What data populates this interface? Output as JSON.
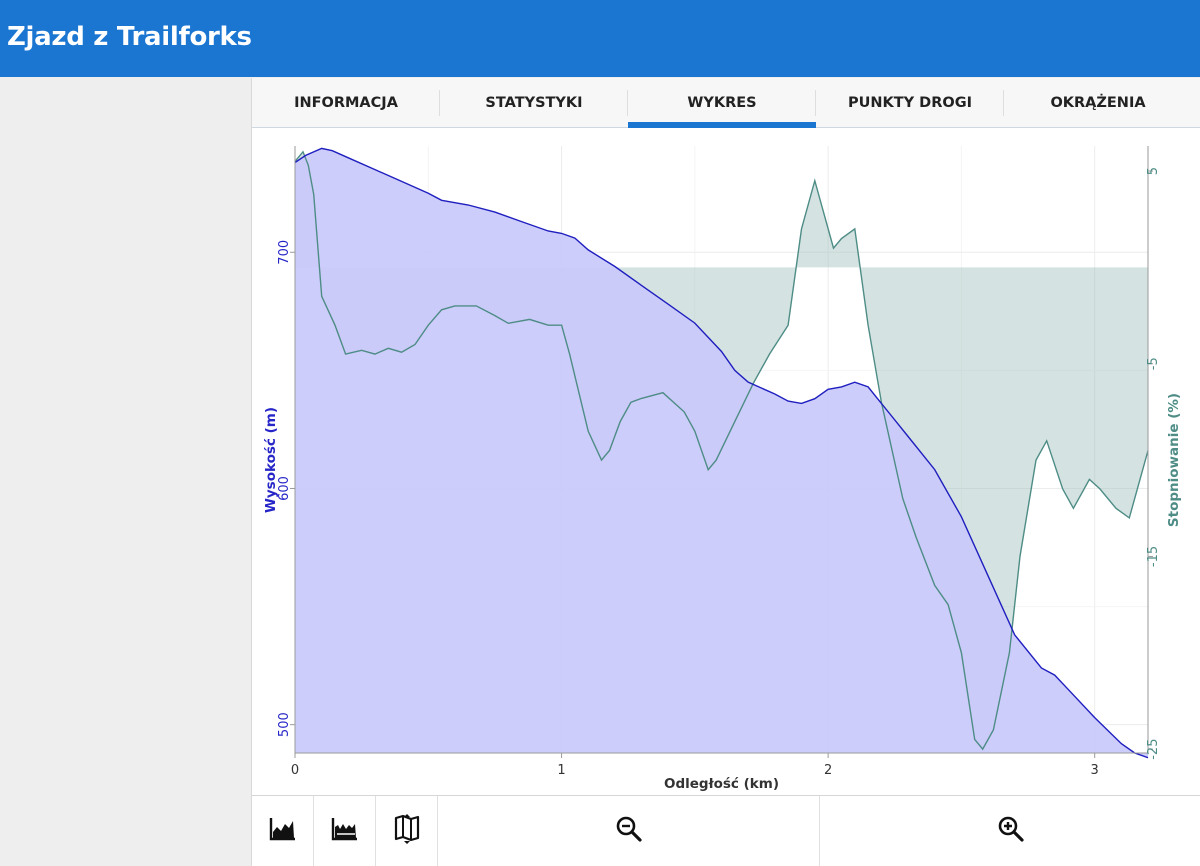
{
  "app": {
    "title": "Zjazd z Trailforks"
  },
  "tabs": [
    {
      "label": "INFORMACJA",
      "active": false
    },
    {
      "label": "STATYSTYKI",
      "active": false
    },
    {
      "label": "WYKRES",
      "active": true
    },
    {
      "label": "PUNKTY DROGI",
      "active": false
    },
    {
      "label": "OKRĄŻENIA",
      "active": false
    }
  ],
  "colors": {
    "appbar": "#1b76d2",
    "elevation_line": "#1f1fbf",
    "elevation_fill": "#c9c9fb",
    "grade_line": "#4e8c86",
    "grade_fill": "#9fc2bd",
    "left_axis_text": "#2626c8",
    "right_axis_text": "#4e8c86"
  },
  "toolbar": {
    "buttons": [
      {
        "icon": "elevation-chart-icon"
      },
      {
        "icon": "speed-chart-icon"
      },
      {
        "icon": "map-toggle-icon"
      },
      {
        "icon": "zoom-out-icon"
      },
      {
        "icon": "zoom-in-icon"
      }
    ]
  },
  "chart_data": {
    "type": "area",
    "xlabel": "Odległość (km)",
    "ylabel": "Wysokość (m)",
    "y2label": "Stopniowanie (%)",
    "xlim": [
      0,
      3.2
    ],
    "ylim": [
      488,
      745
    ],
    "y2lim": [
      -25.2,
      6.3
    ],
    "xticks": [
      "0",
      "1",
      "2",
      "3"
    ],
    "yticks": [
      "500",
      "600",
      "700"
    ],
    "y2ticks": [
      "5",
      "-5",
      "-15",
      "-25"
    ],
    "grid": true,
    "series": [
      {
        "axis": "left",
        "x": [
          0,
          0.04,
          0.1,
          0.14,
          0.2,
          0.3,
          0.4,
          0.5,
          0.55,
          0.65,
          0.75,
          0.85,
          0.95,
          1.0,
          1.05,
          1.1,
          1.2,
          1.3,
          1.4,
          1.5,
          1.6,
          1.65,
          1.7,
          1.8,
          1.85,
          1.9,
          1.95,
          2.0,
          2.05,
          2.1,
          2.15,
          2.2,
          2.3,
          2.4,
          2.5,
          2.6,
          2.7,
          2.8,
          2.85,
          2.9,
          3.0,
          3.1,
          3.15,
          3.2
        ],
        "values": [
          738,
          741,
          744,
          743,
          740,
          735,
          730,
          725,
          722,
          720,
          717,
          713,
          709,
          708,
          706,
          701,
          694,
          686,
          678,
          670,
          658,
          650,
          645,
          640,
          637,
          636,
          638,
          642,
          643,
          645,
          643,
          636,
          622,
          608,
          588,
          563,
          538,
          524,
          521,
          515,
          503,
          492,
          488,
          486
        ]
      },
      {
        "axis": "right",
        "x": [
          0,
          0.03,
          0.05,
          0.07,
          0.1,
          0.15,
          0.19,
          0.25,
          0.3,
          0.35,
          0.4,
          0.45,
          0.5,
          0.55,
          0.6,
          0.68,
          0.75,
          0.8,
          0.88,
          0.95,
          1.0,
          1.03,
          1.1,
          1.15,
          1.18,
          1.22,
          1.26,
          1.3,
          1.38,
          1.46,
          1.5,
          1.55,
          1.58,
          1.65,
          1.72,
          1.78,
          1.85,
          1.9,
          1.95,
          1.98,
          2.02,
          2.05,
          2.1,
          2.15,
          2.2,
          2.28,
          2.33,
          2.4,
          2.45,
          2.5,
          2.55,
          2.58,
          2.62,
          2.68,
          2.72,
          2.78,
          2.82,
          2.88,
          2.92,
          2.98,
          3.02,
          3.08,
          3.13,
          3.18,
          3.2
        ],
        "values": [
          5.5,
          6.0,
          5.3,
          3.8,
          -1.5,
          -3.0,
          -4.5,
          -4.3,
          -4.5,
          -4.2,
          -4.4,
          -4.0,
          -3.0,
          -2.2,
          -2.0,
          -2.0,
          -2.5,
          -2.9,
          -2.7,
          -3.0,
          -3.0,
          -4.5,
          -8.5,
          -10.0,
          -9.5,
          -8.0,
          -7.0,
          -6.8,
          -6.5,
          -7.5,
          -8.5,
          -10.5,
          -10.0,
          -8.0,
          -6.0,
          -4.5,
          -3.0,
          2.0,
          4.5,
          3.0,
          1.0,
          1.5,
          2.0,
          -3.0,
          -7.0,
          -12.0,
          -14.0,
          -16.5,
          -17.5,
          -20.0,
          -24.5,
          -25.0,
          -24.0,
          -20.0,
          -15.0,
          -10.0,
          -9.0,
          -11.5,
          -12.5,
          -11.0,
          -11.5,
          -12.5,
          -13.0,
          -10.5,
          -9.5
        ]
      }
    ]
  }
}
